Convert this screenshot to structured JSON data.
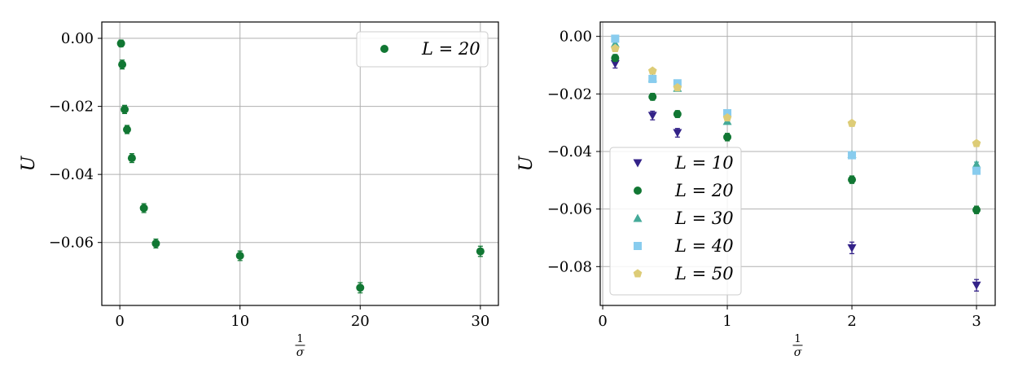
{
  "chart_data": [
    {
      "type": "scatter",
      "xlabel_num": "1",
      "xlabel_den": "σ",
      "ylabel": "U",
      "xlim": [
        -1.5,
        31.5
      ],
      "ylim": [
        -0.0785,
        0.0048
      ],
      "xticks": [
        0,
        10,
        20,
        30
      ],
      "xtick_labels": [
        "0",
        "10",
        "20",
        "30"
      ],
      "yticks": [
        0.0,
        -0.02,
        -0.04,
        -0.06
      ],
      "ytick_labels": [
        "0.00",
        "−0.02",
        "−0.04",
        "−0.06"
      ],
      "grid": true,
      "legend_position": "top-right",
      "series": [
        {
          "name": "L = 20",
          "marker": "circle",
          "color": "#117733",
          "x": [
            0.1,
            0.2,
            0.4,
            0.6,
            1,
            2,
            3,
            10,
            20,
            30
          ],
          "y": [
            -0.0015,
            -0.0077,
            -0.0209,
            -0.0268,
            -0.0352,
            -0.0499,
            -0.0603,
            -0.0639,
            -0.0733,
            -0.0626
          ],
          "err": [
            0.001,
            0.0013,
            0.0012,
            0.0012,
            0.0013,
            0.0013,
            0.0013,
            0.0014,
            0.0015,
            0.0015
          ]
        }
      ]
    },
    {
      "type": "scatter",
      "xlabel_num": "1",
      "xlabel_den": "σ",
      "ylabel": "U",
      "xlim": [
        -0.02,
        3.15
      ],
      "ylim": [
        -0.0935,
        0.005
      ],
      "xticks": [
        0,
        1,
        2,
        3
      ],
      "xtick_labels": [
        "0",
        "1",
        "2",
        "3"
      ],
      "yticks": [
        0.0,
        -0.02,
        -0.04,
        -0.06,
        -0.08
      ],
      "ytick_labels": [
        "0.00",
        "−0.02",
        "−0.04",
        "−0.06",
        "−0.08"
      ],
      "grid": true,
      "legend_position": "lower-left",
      "series": [
        {
          "name": "L = 10",
          "marker": "triangle-down",
          "color": "#332288",
          "x": [
            0.1,
            0.4,
            0.6,
            2,
            3
          ],
          "y": [
            -0.0095,
            -0.0275,
            -0.0335,
            -0.0735,
            -0.0865
          ],
          "err": [
            0.0015,
            0.0015,
            0.0015,
            0.002,
            0.002
          ]
        },
        {
          "name": "L = 20",
          "marker": "circle",
          "color": "#117733",
          "x": [
            0.1,
            0.4,
            0.6,
            1,
            2,
            3
          ],
          "y": [
            -0.0075,
            -0.021,
            -0.027,
            -0.035,
            -0.0498,
            -0.0603
          ],
          "err": [
            0.0012,
            0.0012,
            0.0012,
            0.0013,
            0.0013,
            0.0013
          ]
        },
        {
          "name": "L = 30",
          "marker": "triangle-up",
          "color": "#44AA99",
          "x": [
            0.1,
            0.4,
            0.6,
            1,
            2,
            3
          ],
          "y": [
            -0.0025,
            -0.0145,
            -0.018,
            -0.0295,
            -0.041,
            -0.0445
          ],
          "err": [
            0.0008,
            0.0008,
            0.0008,
            0.0008,
            0.0008,
            0.0008
          ]
        },
        {
          "name": "L = 40",
          "marker": "square",
          "color": "#88CCEE",
          "x": [
            0.1,
            0.4,
            0.6,
            1,
            2,
            3
          ],
          "y": [
            -0.0008,
            -0.0148,
            -0.0163,
            -0.0267,
            -0.0413,
            -0.0467
          ],
          "err": [
            0.0006,
            0.0006,
            0.0006,
            0.0006,
            0.0006,
            0.0006
          ]
        },
        {
          "name": "L = 50",
          "marker": "pentagon",
          "color": "#DDCC77",
          "x": [
            0.1,
            0.4,
            0.6,
            1,
            2,
            3
          ],
          "y": [
            -0.0042,
            -0.012,
            -0.0178,
            -0.0283,
            -0.0302,
            -0.0372
          ],
          "err": [
            0.0005,
            0.0005,
            0.0005,
            0.0005,
            0.0005,
            0.0005
          ]
        }
      ]
    }
  ]
}
